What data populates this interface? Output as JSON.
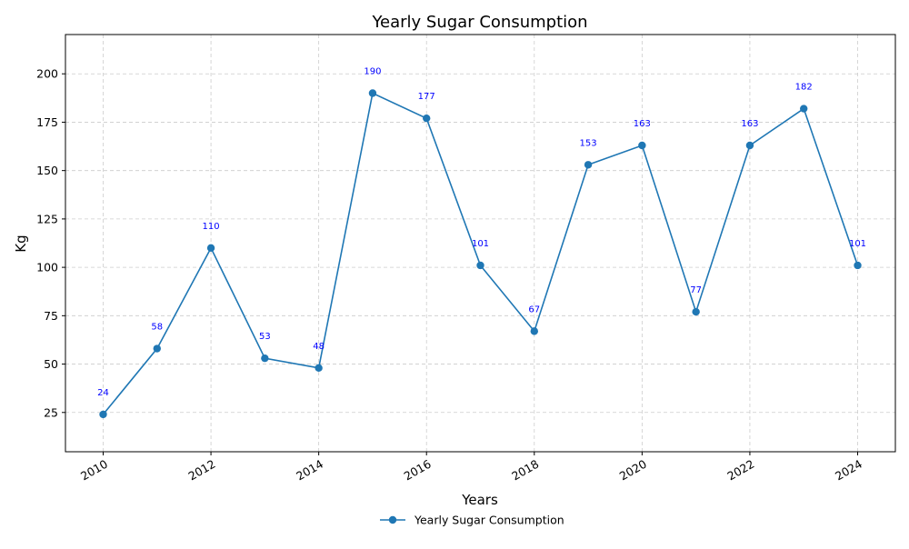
{
  "chart_data": {
    "type": "line",
    "title": "Yearly Sugar Consumption",
    "xlabel": "Years",
    "ylabel": "Kg",
    "x": [
      2010,
      2011,
      2012,
      2013,
      2014,
      2015,
      2016,
      2017,
      2018,
      2019,
      2020,
      2021,
      2022,
      2023,
      2024
    ],
    "series": [
      {
        "name": "Yearly Sugar Consumption",
        "values": [
          24,
          58,
          110,
          53,
          48,
          190,
          177,
          101,
          67,
          153,
          163,
          77,
          163,
          182,
          101
        ],
        "color": "#1f77b4",
        "marker": "circle"
      }
    ],
    "xlim": [
      2009.3,
      2024.7
    ],
    "ylim": [
      4.7,
      220.3
    ],
    "xticks": [
      2010,
      2012,
      2014,
      2016,
      2018,
      2020,
      2022,
      2024
    ],
    "yticks": [
      25,
      50,
      75,
      100,
      125,
      150,
      175,
      200
    ],
    "grid": true,
    "data_labels": true,
    "data_label_color": "#0000ff",
    "legend_position": "bottom-center"
  }
}
